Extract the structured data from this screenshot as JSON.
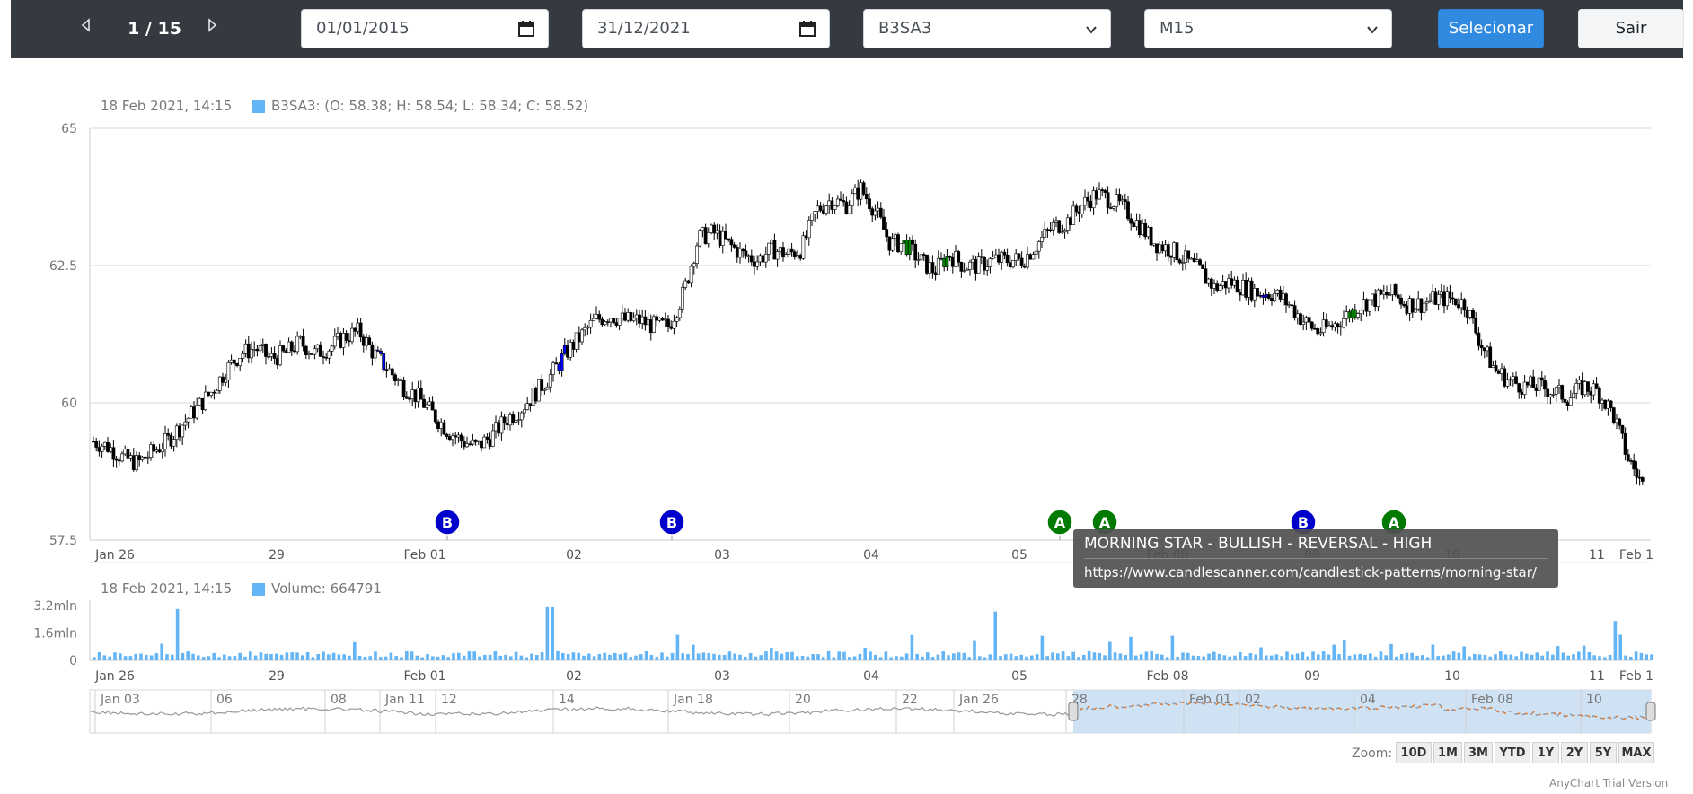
{
  "toolbar": {
    "prev_icon": "caret-left-icon",
    "next_icon": "caret-right-icon",
    "page_counter": "1 / 15",
    "start_date": "01/01/2015",
    "end_date": "31/12/2021",
    "symbol": "B3SA3",
    "timeframe": "M15",
    "select_label": "Selecionar",
    "exit_label": "Sair",
    "colors": {
      "bar": "#343a40",
      "primary": "#2f8ae0"
    }
  },
  "chart_data": {
    "type": "candlestick",
    "price_panel": {
      "legend_date": "18 Feb 2021, 14:15",
      "legend_text": "B3SA3: (O: 58.38; H: 58.54; L: 58.34; C: 58.52)",
      "y_ticks": [
        "65",
        "62.5",
        "60",
        "57.5"
      ],
      "ylim": [
        57.5,
        65
      ],
      "grid": true,
      "series": [
        {
          "name": "B3SA3",
          "close_path": [
            59.3,
            59.2,
            59.0,
            58.9,
            59.1,
            59.3,
            59.6,
            59.9,
            60.2,
            60.6,
            60.9,
            61.0,
            60.8,
            60.9,
            61.1,
            60.9,
            61.0,
            61.2,
            61.3,
            60.9,
            60.6,
            60.3,
            60.1,
            59.8,
            59.5,
            59.3,
            59.2,
            59.4,
            59.7,
            59.9,
            60.2,
            60.5,
            60.9,
            61.2,
            61.5,
            61.6,
            61.5,
            61.5,
            61.4,
            61.4,
            62.0,
            63.0,
            63.1,
            62.9,
            62.7,
            62.6,
            62.8,
            62.7,
            62.8,
            63.5,
            63.7,
            63.6,
            63.9,
            63.5,
            62.9,
            62.9,
            62.6,
            62.4,
            62.7,
            62.5,
            62.5,
            62.6,
            62.6,
            62.6,
            62.9,
            63.2,
            63.3,
            63.6,
            63.8,
            63.7,
            63.5,
            63.2,
            62.9,
            62.8,
            62.6,
            62.4,
            62.1,
            62.2,
            62.1,
            62.0,
            62.0,
            61.8,
            61.5,
            61.3,
            61.4,
            61.6,
            61.8,
            61.9,
            62.0,
            61.8,
            61.8,
            61.9,
            61.9,
            61.8,
            61.1,
            60.6,
            60.4,
            60.3,
            60.3,
            60.2,
            60.1,
            60.3,
            60.2,
            59.8,
            59.0,
            58.5
          ],
          "close_path_note_hidden": true
        },
        {
          "name": "Volume"
        }
      ],
      "x_ticks": [
        "Jan 26",
        "29",
        "Feb 01",
        "02",
        "03",
        "04",
        "05",
        "Feb 08",
        "09",
        "10",
        "11",
        "Feb 1"
      ],
      "markers": [
        {
          "label": "B",
          "color": "#0000cc"
        },
        {
          "label": "B",
          "color": "#0000cc"
        },
        {
          "label": "A",
          "color": "#007a00"
        },
        {
          "label": "A",
          "color": "#007a00"
        },
        {
          "label": "B",
          "color": "#0000cc"
        },
        {
          "label": "A",
          "color": "#007a00"
        }
      ]
    },
    "volume_panel": {
      "legend_date": "18 Feb 2021, 14:15",
      "legend_text": "Volume: 664791",
      "y_ticks": [
        "3.2mln",
        "1.6mln",
        "0"
      ],
      "ylim": [
        0,
        3200000
      ],
      "spikes": [
        3000000,
        3100000,
        2850000,
        2300000
      ]
    },
    "navigator": {
      "labels": [
        "Jan 03",
        "06",
        "08",
        "Jan 11",
        "12",
        "14",
        "Jan 18",
        "20",
        "22",
        "Jan 26",
        "28",
        "Feb 01",
        "02",
        "04",
        "Feb 08",
        "10"
      ],
      "selection": [
        0.63,
        1.0
      ]
    },
    "colors": {
      "up": "#ffffff",
      "down": "#000000",
      "bull_pattern": "#008000",
      "bear_pattern": "#0000ff",
      "volume": "#64b5f6",
      "nav_line": "#999999",
      "nav_selected_line": "#e07020",
      "nav_selection_fill": "#cfe2f3"
    }
  },
  "tooltip": {
    "title": "MORNING STAR - BULLISH - REVERSAL - HIGH",
    "url": "https://www.candlescanner.com/candlestick-patterns/morning-star/"
  },
  "zoom": {
    "label": "Zoom:",
    "buttons": [
      "10D",
      "1M",
      "3M",
      "YTD",
      "1Y",
      "2Y",
      "5Y",
      "MAX"
    ]
  },
  "watermark": "AnyChart Trial Version"
}
